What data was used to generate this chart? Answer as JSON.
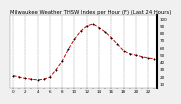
{
  "title": "Milwaukee Weather THSW Index per Hour (F) (Last 24 Hours)",
  "hours": [
    0,
    1,
    2,
    3,
    4,
    5,
    6,
    7,
    8,
    9,
    10,
    11,
    12,
    13,
    14,
    15,
    16,
    17,
    18,
    19,
    20,
    21,
    22,
    23
  ],
  "values": [
    22,
    20,
    18,
    17,
    16,
    17,
    20,
    30,
    42,
    58,
    72,
    83,
    90,
    93,
    88,
    82,
    74,
    65,
    56,
    52,
    50,
    48,
    46,
    45
  ],
  "line_color": "#cc0000",
  "marker_color": "#000000",
  "background_color": "#f0f0f0",
  "plot_bg_color": "#ffffff",
  "grid_color": "#888888",
  "right_border_color": "#000000",
  "ylim_min": 5,
  "ylim_max": 105,
  "ytick_values": [
    10,
    20,
    30,
    40,
    50,
    60,
    70,
    80,
    90,
    100
  ],
  "xtick_hours": [
    0,
    1,
    2,
    3,
    4,
    5,
    6,
    7,
    8,
    9,
    10,
    11,
    12,
    13,
    14,
    15,
    16,
    17,
    18,
    19,
    20,
    21,
    22,
    23
  ],
  "vgrid_hours": [
    0,
    2,
    4,
    6,
    8,
    10,
    12,
    14,
    16,
    18,
    20,
    22
  ],
  "title_fontsize": 3.8,
  "tick_fontsize": 3.0,
  "linewidth": 0.7,
  "markersize": 1.0
}
